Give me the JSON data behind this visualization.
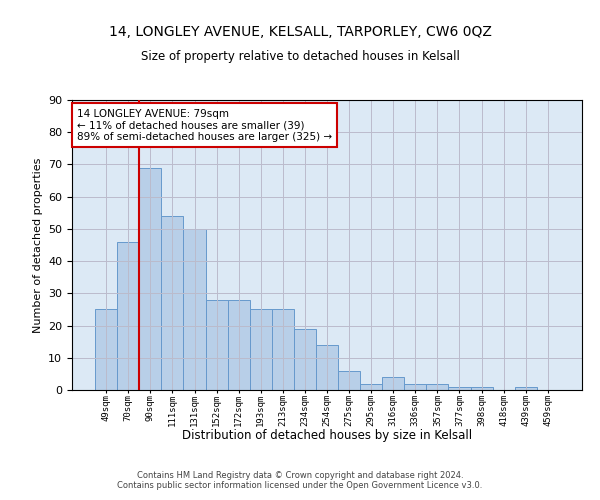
{
  "title": "14, LONGLEY AVENUE, KELSALL, TARPORLEY, CW6 0QZ",
  "subtitle": "Size of property relative to detached houses in Kelsall",
  "xlabel": "Distribution of detached houses by size in Kelsall",
  "ylabel": "Number of detached properties",
  "bar_labels": [
    "49sqm",
    "70sqm",
    "90sqm",
    "111sqm",
    "131sqm",
    "152sqm",
    "172sqm",
    "193sqm",
    "213sqm",
    "234sqm",
    "254sqm",
    "275sqm",
    "295sqm",
    "316sqm",
    "336sqm",
    "357sqm",
    "377sqm",
    "398sqm",
    "418sqm",
    "439sqm",
    "459sqm"
  ],
  "bar_values": [
    25,
    46,
    69,
    54,
    50,
    28,
    28,
    25,
    25,
    19,
    14,
    6,
    2,
    4,
    2,
    2,
    1,
    1,
    0,
    1,
    0
  ],
  "bar_color": "#b8cfe8",
  "bar_edge_color": "#6699cc",
  "background_color": "#ffffff",
  "plot_bg_color": "#dce9f5",
  "grid_color": "#bbbbcc",
  "subject_line_color": "#cc0000",
  "annotation_text": "14 LONGLEY AVENUE: 79sqm\n← 11% of detached houses are smaller (39)\n89% of semi-detached houses are larger (325) →",
  "annotation_box_color": "#ffffff",
  "annotation_box_edge": "#cc0000",
  "ylim": [
    0,
    90
  ],
  "yticks": [
    0,
    10,
    20,
    30,
    40,
    50,
    60,
    70,
    80,
    90
  ],
  "footer_line1": "Contains HM Land Registry data © Crown copyright and database right 2024.",
  "footer_line2": "Contains public sector information licensed under the Open Government Licence v3.0."
}
